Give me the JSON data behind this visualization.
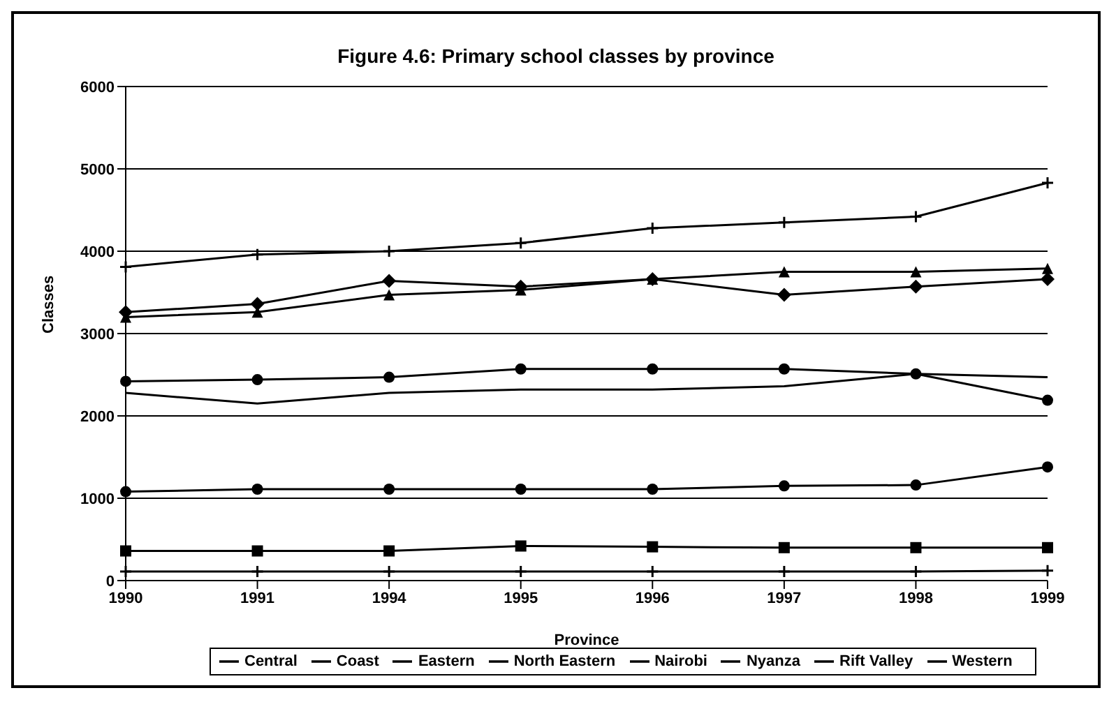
{
  "chart_data": {
    "type": "line",
    "title": "Figure 4.6: Primary school classes by province",
    "xlabel": "Province",
    "ylabel": "Classes",
    "categories": [
      "1990",
      "1991",
      "1994",
      "1995",
      "1996",
      "1997",
      "1998",
      "1999"
    ],
    "ylim": [
      0,
      6000
    ],
    "yticks": [
      0,
      1000,
      2000,
      3000,
      4000,
      5000,
      6000
    ],
    "grid": "y",
    "legend": "bottom",
    "series": [
      {
        "name": "Central",
        "color": "#000000",
        "marker": "diamond",
        "values": [
          3260,
          3360,
          3640,
          3570,
          3660,
          3470,
          3570,
          3660
        ]
      },
      {
        "name": "Coast",
        "color": "#000000",
        "marker": "circle",
        "values": [
          1080,
          1110,
          1110,
          1110,
          1110,
          1150,
          1160,
          1380
        ]
      },
      {
        "name": "Eastern",
        "color": "#000000",
        "marker": "triangle",
        "values": [
          3200,
          3260,
          3470,
          3530,
          3660,
          3750,
          3750,
          3790
        ]
      },
      {
        "name": "North Eastern",
        "color": "#000000",
        "marker": "cross",
        "values": [
          110,
          110,
          110,
          110,
          110,
          110,
          110,
          120
        ]
      },
      {
        "name": "Nairobi",
        "color": "#000000",
        "marker": "square",
        "values": [
          360,
          360,
          360,
          420,
          410,
          400,
          400,
          400
        ]
      },
      {
        "name": "Nyanza",
        "color": "#000000",
        "marker": "circle",
        "values": [
          2420,
          2440,
          2470,
          2570,
          2570,
          2570,
          2510,
          2190
        ]
      },
      {
        "name": "Rift Valley",
        "color": "#000000",
        "marker": "cross",
        "values": [
          3810,
          3960,
          4000,
          4100,
          4280,
          4350,
          4420,
          4830
        ]
      },
      {
        "name": "Western",
        "color": "#000000",
        "marker": "none",
        "values": [
          2280,
          2150,
          2280,
          2320,
          2320,
          2360,
          2510,
          2470
        ]
      }
    ]
  }
}
